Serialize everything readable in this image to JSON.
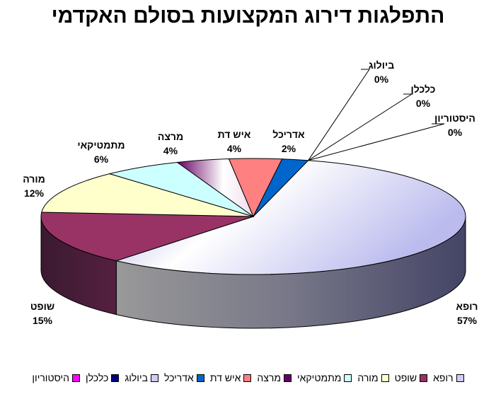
{
  "chart_data": {
    "type": "pie",
    "title": "התפלגות דירוג המקצועות בסולם האקדמי",
    "categories": [
      "רופא",
      "שופט",
      "מורה",
      "מתמטיקאי",
      "מרצה",
      "איש דת",
      "אדריכל",
      "ביולוג",
      "כלכלן",
      "היסטוריון"
    ],
    "values": [
      57,
      15,
      12,
      6,
      4,
      4,
      2,
      0,
      0,
      0
    ],
    "value_labels": [
      "57%",
      "15%",
      "12%",
      "6%",
      "4%",
      "4%",
      "2%",
      "0%",
      "0%",
      "0%"
    ],
    "colors": [
      "#CCCCFF",
      "#993366",
      "#FFFFCC",
      "#CCFFFF",
      "#660066",
      "#FF8080",
      "#0066CC",
      "#CCCCFF",
      "#000080",
      "#FF00FF"
    ],
    "legend_position": "bottom",
    "style": "3d"
  }
}
